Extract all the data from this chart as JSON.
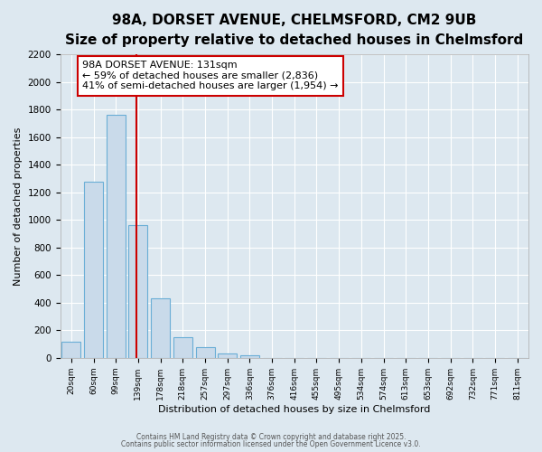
{
  "title1": "98A, DORSET AVENUE, CHELMSFORD, CM2 9UB",
  "title2": "Size of property relative to detached houses in Chelmsford",
  "xlabel": "Distribution of detached houses by size in Chelmsford",
  "ylabel": "Number of detached properties",
  "bin_labels": [
    "20sqm",
    "60sqm",
    "99sqm",
    "139sqm",
    "178sqm",
    "218sqm",
    "257sqm",
    "297sqm",
    "336sqm",
    "376sqm",
    "416sqm",
    "455sqm",
    "495sqm",
    "534sqm",
    "574sqm",
    "613sqm",
    "653sqm",
    "692sqm",
    "732sqm",
    "771sqm",
    "811sqm"
  ],
  "bar_values": [
    120,
    1280,
    1760,
    960,
    430,
    150,
    75,
    35,
    20,
    0,
    0,
    0,
    0,
    0,
    0,
    0,
    0,
    0,
    0,
    0,
    0
  ],
  "bar_color": "#c9daea",
  "bar_edge_color": "#6aaed6",
  "vline_color": "#cc0000",
  "annotation_text": "98A DORSET AVENUE: 131sqm\n← 59% of detached houses are smaller (2,836)\n41% of semi-detached houses are larger (1,954) →",
  "annotation_box_color": "#ffffff",
  "annotation_box_edge_color": "#cc0000",
  "ylim": [
    0,
    2200
  ],
  "yticks": [
    0,
    200,
    400,
    600,
    800,
    1000,
    1200,
    1400,
    1600,
    1800,
    2000,
    2200
  ],
  "footer1": "Contains HM Land Registry data © Crown copyright and database right 2025.",
  "footer2": "Contains public sector information licensed under the Open Government Licence v3.0.",
  "bg_color": "#dde8f0",
  "fig_bg_color": "#dde8f0",
  "title_fontsize": 11,
  "subtitle_fontsize": 9,
  "bar_width": 0.85
}
